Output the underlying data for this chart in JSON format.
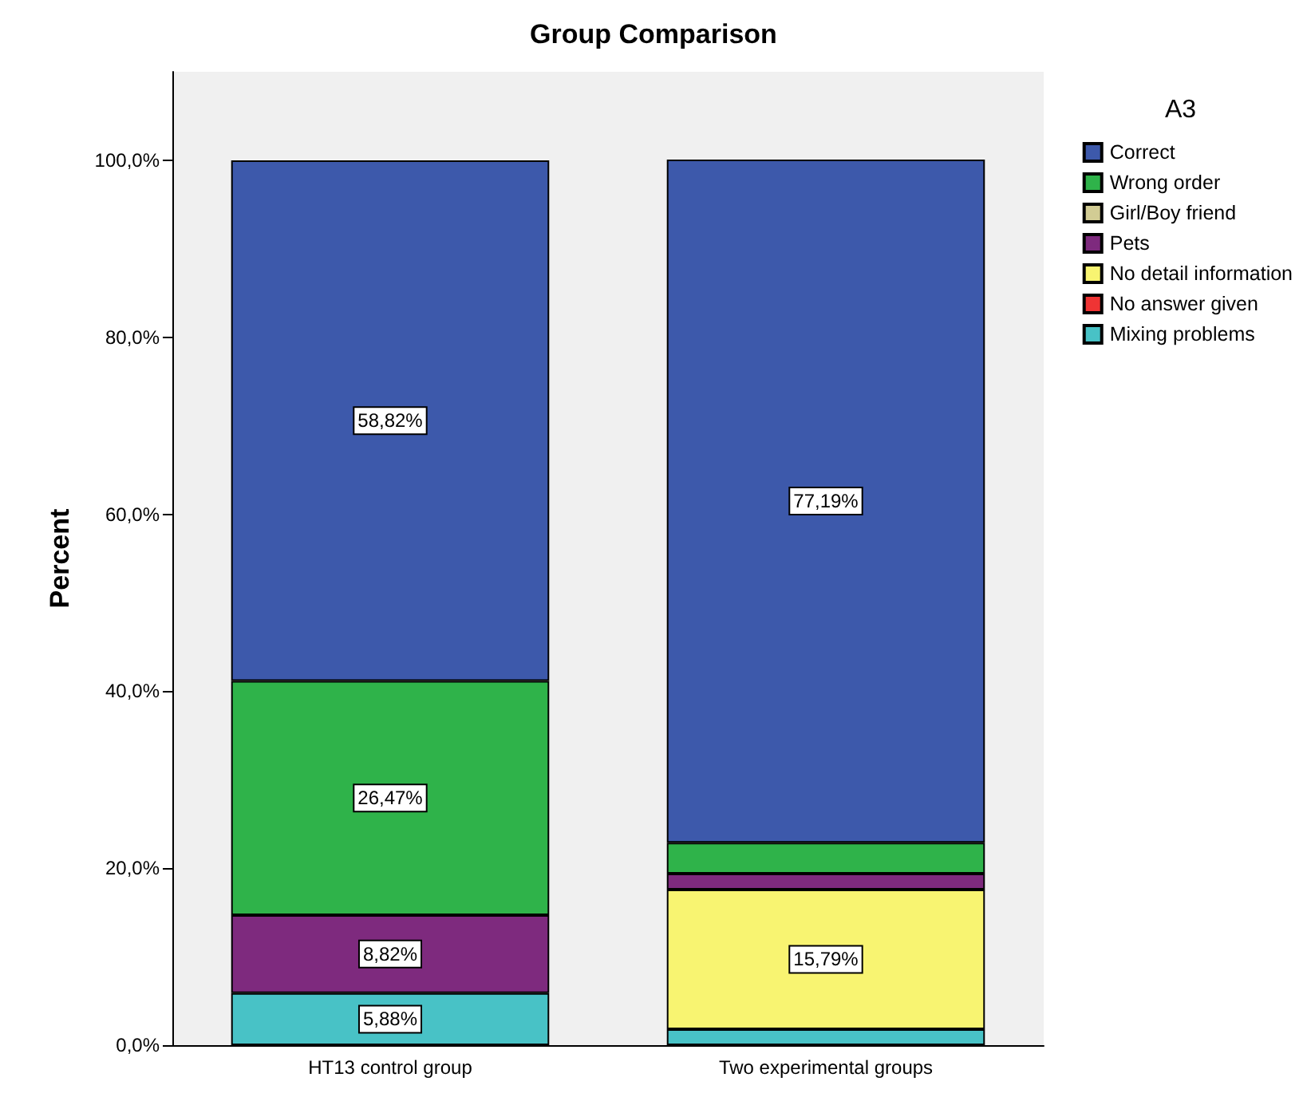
{
  "chart_data": {
    "type": "bar",
    "title": "Group Comparison",
    "ylabel": "Percent",
    "legend_title": "A3",
    "legend": "top right",
    "stacked": true,
    "grid": false,
    "categories": [
      "HT13 control group",
      "Two experimental groups"
    ],
    "ylim": [
      0,
      110
    ],
    "yticks": [
      {
        "value": 0,
        "label": "0,0%"
      },
      {
        "value": 20,
        "label": "20,0%"
      },
      {
        "value": 40,
        "label": "40,0%"
      },
      {
        "value": 60,
        "label": "60,0%"
      },
      {
        "value": 80,
        "label": "80,0%"
      },
      {
        "value": 100,
        "label": "100,0%"
      }
    ],
    "series": [
      {
        "name": "Mixing problems",
        "color": "#48c2c6",
        "values": [
          5.88,
          1.8
        ],
        "value_labels": [
          "5,88%",
          null
        ]
      },
      {
        "name": "No answer given",
        "color": "#ef3434",
        "values": [
          null,
          null
        ]
      },
      {
        "name": "No detail information",
        "color": "#f8f471",
        "values": [
          null,
          15.79
        ],
        "value_labels": [
          null,
          "15,79%"
        ]
      },
      {
        "name": "Pets",
        "color": "#7e2a7e",
        "values": [
          8.82,
          1.8
        ],
        "value_labels": [
          "8,82%",
          null
        ]
      },
      {
        "name": "Girl/Boy friend",
        "color": "#d2cc94",
        "values": [
          null,
          null
        ]
      },
      {
        "name": "Wrong order",
        "color": "#2fb34a",
        "values": [
          26.47,
          3.5
        ],
        "value_labels": [
          "26,47%",
          null
        ]
      },
      {
        "name": "Correct",
        "color": "#3d59ab",
        "values": [
          58.82,
          77.19
        ],
        "value_labels": [
          "58,82%",
          "77,19%"
        ]
      }
    ]
  }
}
